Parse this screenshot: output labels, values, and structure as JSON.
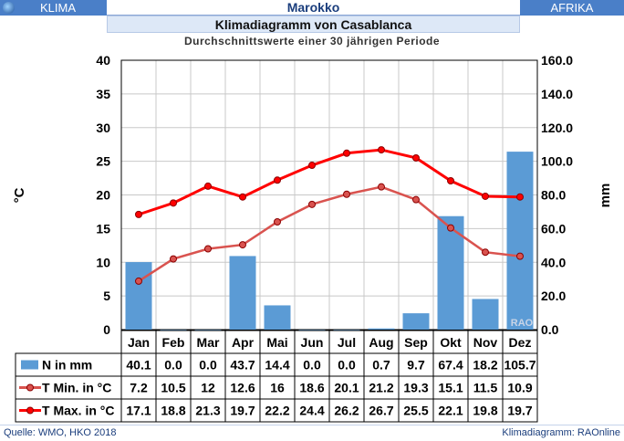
{
  "header": {
    "left_label": "KLIMA",
    "center_label": "Marokko",
    "right_label": "AFRIKA"
  },
  "title": "Klimadiagramm von Casablanca",
  "subtitle": "Durchschnittswerte einer 30 jährigen Periode",
  "footer": {
    "source": "Quelle:  WMO, HKO 2018",
    "credit": "Klimadiagramm:  RAOnline"
  },
  "watermark": "RAO",
  "chart_data": {
    "type": "bar+line",
    "categories": [
      "Jan",
      "Feb",
      "Mar",
      "Apr",
      "Mai",
      "Jun",
      "Jul",
      "Aug",
      "Sep",
      "Okt",
      "Nov",
      "Dez"
    ],
    "y_left": {
      "label": "°C",
      "min": 0,
      "max": 40,
      "ticks": [
        "0",
        "5",
        "10",
        "15",
        "20",
        "25",
        "30",
        "35",
        "40"
      ]
    },
    "y_right": {
      "label": "mm",
      "min": 0,
      "max": 160,
      "ticks": [
        "0.0",
        "20.0",
        "40.0",
        "60.0",
        "80.0",
        "100.0",
        "120.0",
        "140.0",
        "160.0"
      ]
    },
    "series": [
      {
        "name": "N in mm",
        "kind": "bar",
        "axis": "right",
        "color": "#5b9bd5",
        "values": [
          40.1,
          0.0,
          0.0,
          43.7,
          14.4,
          0.0,
          0.0,
          0.7,
          9.7,
          67.4,
          18.2,
          105.7
        ],
        "labels": [
          "40.1",
          "0.0",
          "0.0",
          "43.7",
          "14.4",
          "0.0",
          "0.0",
          "0.7",
          "9.7",
          "67.4",
          "18.2",
          "105.7"
        ]
      },
      {
        "name": "T Min. in °C",
        "kind": "line",
        "axis": "left",
        "color": "#d9534f",
        "values": [
          7.2,
          10.5,
          12,
          12.6,
          16,
          18.6,
          20.1,
          21.2,
          19.3,
          15.1,
          11.5,
          10.9
        ],
        "labels": [
          "7.2",
          "10.5",
          "12",
          "12.6",
          "16",
          "18.6",
          "20.1",
          "21.2",
          "19.3",
          "15.1",
          "11.5",
          "10.9"
        ]
      },
      {
        "name": "T Max. in °C",
        "kind": "line",
        "axis": "left",
        "color": "#ff0000",
        "values": [
          17.1,
          18.8,
          21.3,
          19.7,
          22.2,
          24.4,
          26.2,
          26.7,
          25.5,
          22.1,
          19.8,
          19.7
        ],
        "labels": [
          "17.1",
          "18.8",
          "21.3",
          "19.7",
          "22.2",
          "24.4",
          "26.2",
          "26.7",
          "25.5",
          "22.1",
          "19.8",
          "19.7"
        ]
      }
    ],
    "grid": true,
    "legend": "table-below"
  }
}
